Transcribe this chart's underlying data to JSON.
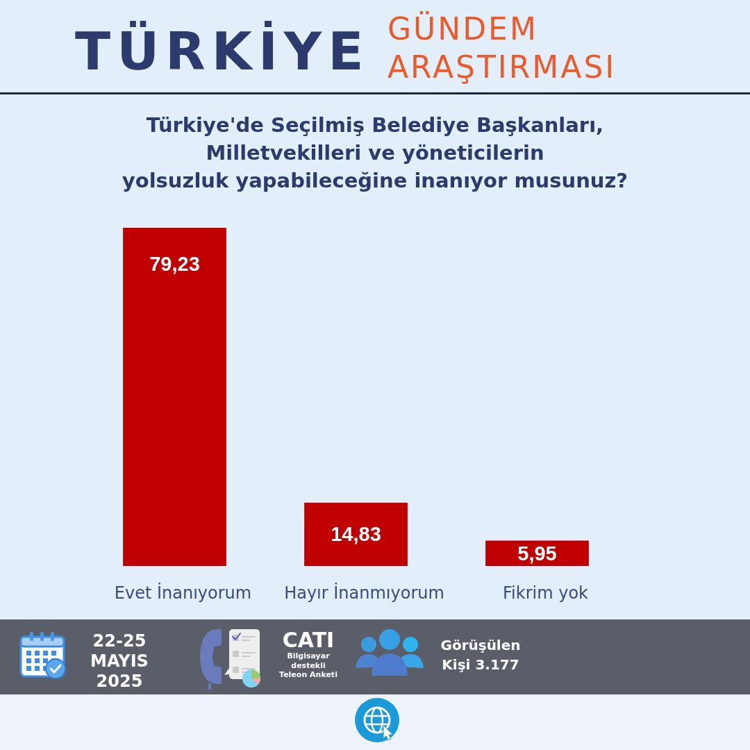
{
  "chart_data": {
    "type": "bar",
    "title": "TÜRKİYE GÜNDEM ARAŞTIRMASI",
    "subtitle": "Türkiye'de Seçilmiş Belediye Başkanları,\nMilletvekilleri ve yöneticilerin\nyolsuzluk yapabileceğine inanıyor musunuz?",
    "categories": [
      "Evet İnanıyorum",
      "Hayır İnanmıyorum",
      "Fikrim yok"
    ],
    "values": [
      79.23,
      14.83,
      5.95
    ],
    "color": "#c00000",
    "value_labels": [
      "79,23",
      "14,83",
      "5,95"
    ],
    "annotations": [
      "22-25\nMAYIS\n2025",
      "CATI",
      "Bilgisayar\ndestekli\nTeleon Anketi",
      "Görüşülen\nKişi 3.177"
    ]
  }
}
